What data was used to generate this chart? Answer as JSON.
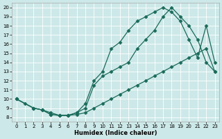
{
  "xlabel": "Humidex (Indice chaleur)",
  "bg_color": "#cde8e8",
  "line_color": "#1a6b5a",
  "xlim": [
    -0.5,
    23.5
  ],
  "ylim": [
    7.5,
    20.5
  ],
  "yticks": [
    8,
    9,
    10,
    11,
    12,
    13,
    14,
    15,
    16,
    17,
    18,
    19,
    20
  ],
  "xticks": [
    0,
    1,
    2,
    3,
    4,
    5,
    6,
    7,
    8,
    9,
    10,
    11,
    12,
    13,
    14,
    15,
    16,
    17,
    18,
    19,
    20,
    21,
    22,
    23
  ],
  "line1_x": [
    0,
    1,
    2,
    3,
    4,
    5,
    6,
    7,
    8,
    9,
    10,
    11,
    12,
    13,
    14,
    15,
    16,
    17,
    18,
    19,
    20,
    21,
    22,
    23
  ],
  "line1_y": [
    10,
    9.5,
    9.0,
    8.8,
    8.5,
    8.2,
    8.2,
    8.3,
    8.5,
    9.0,
    9.5,
    10.0,
    10.5,
    11.0,
    11.5,
    12.0,
    12.5,
    13.0,
    13.5,
    14.0,
    14.5,
    15.0,
    15.5,
    13.0
  ],
  "line2_x": [
    0,
    2,
    3,
    4,
    5,
    6,
    7,
    8,
    9,
    10,
    11,
    12,
    13,
    14,
    15,
    16,
    17,
    18,
    19,
    20,
    21,
    22,
    23
  ],
  "line2_y": [
    10,
    9.0,
    8.8,
    8.3,
    8.2,
    8.2,
    8.5,
    9.5,
    12.0,
    13.0,
    15.5,
    16.2,
    17.5,
    18.5,
    19.0,
    19.5,
    20.0,
    19.5,
    18.5,
    16.5,
    14.5,
    18.0,
    14.0
  ],
  "line3_x": [
    0,
    2,
    3,
    4,
    5,
    6,
    7,
    8,
    9,
    10,
    11,
    12,
    13,
    14,
    15,
    16,
    17,
    18,
    19,
    20,
    21,
    22,
    23
  ],
  "line3_y": [
    10,
    9.0,
    8.8,
    8.3,
    8.2,
    8.2,
    8.5,
    9.0,
    11.5,
    12.5,
    13.0,
    13.5,
    14.0,
    15.5,
    16.5,
    17.5,
    19.0,
    20.0,
    19.0,
    18.0,
    16.5,
    14.0,
    13.0
  ]
}
